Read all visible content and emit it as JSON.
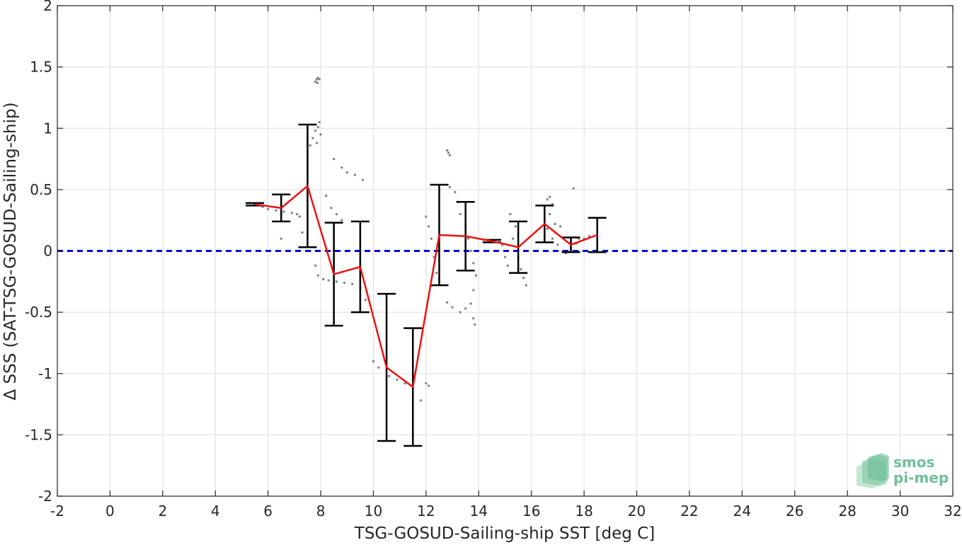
{
  "chart_data": {
    "type": "line",
    "xlabel": "TSG-GOSUD-Sailing-ship SST [deg C]",
    "ylabel": "Δ SSS (SAT-TSG-GOSUD-Sailing-ship)",
    "xlim": [
      -2,
      32
    ],
    "ylim": [
      -2,
      2
    ],
    "xticks": [
      -2,
      0,
      2,
      4,
      6,
      8,
      10,
      12,
      14,
      16,
      18,
      20,
      22,
      24,
      26,
      28,
      30,
      32
    ],
    "yticks": [
      -2,
      -1.5,
      -1,
      -0.5,
      0,
      0.5,
      1,
      1.5,
      2
    ],
    "xtick_labels": [
      "-2",
      "0",
      "2",
      "4",
      "6",
      "8",
      "10",
      "12",
      "14",
      "16",
      "18",
      "20",
      "22",
      "24",
      "26",
      "28",
      "30",
      "32"
    ],
    "ytick_labels": [
      "-2",
      "-1.5",
      "-1",
      "-0.5",
      "0",
      "0.5",
      "1",
      "1.5",
      "2"
    ],
    "grid": true,
    "reference_line": {
      "y": 0,
      "style": "dashed",
      "color": "#0000e0"
    },
    "series": [
      {
        "kind": "binned-mean-with-errorbars",
        "color": "#ee1111",
        "x": [
          5.5,
          6.5,
          7.5,
          8.5,
          9.5,
          10.5,
          11.5,
          12.5,
          13.5,
          14.5,
          15.5,
          16.5,
          17.5,
          18.5
        ],
        "y": [
          0.38,
          0.35,
          0.53,
          -0.19,
          -0.13,
          -0.95,
          -1.11,
          0.13,
          0.12,
          0.08,
          0.03,
          0.22,
          0.05,
          0.13
        ],
        "yerr": [
          0.01,
          0.11,
          0.5,
          0.42,
          0.37,
          0.6,
          0.48,
          0.41,
          0.28,
          0.01,
          0.21,
          0.15,
          0.06,
          0.14
        ]
      },
      {
        "kind": "scatter",
        "color": "#808080",
        "points": [
          [
            5.5,
            0.38
          ],
          [
            5.8,
            0.36
          ],
          [
            6.0,
            0.34
          ],
          [
            6.3,
            0.33
          ],
          [
            6.6,
            0.32
          ],
          [
            6.9,
            0.31
          ],
          [
            7.1,
            0.3
          ],
          [
            7.2,
            0.28
          ],
          [
            6.5,
            0.1
          ],
          [
            7.3,
            0.15
          ],
          [
            7.6,
            0.0
          ],
          [
            7.8,
            -0.12
          ],
          [
            7.9,
            -0.2
          ],
          [
            8.1,
            -0.23
          ],
          [
            8.3,
            -0.24
          ],
          [
            8.6,
            -0.25
          ],
          [
            8.9,
            -0.26
          ],
          [
            9.2,
            -0.27
          ],
          [
            9.5,
            -0.3
          ],
          [
            9.7,
            -0.4
          ],
          [
            7.6,
            0.86
          ],
          [
            7.7,
            0.92
          ],
          [
            7.8,
            0.98
          ],
          [
            7.9,
            1.01
          ],
          [
            7.95,
            1.05
          ],
          [
            8.0,
            0.95
          ],
          [
            7.85,
            0.88
          ],
          [
            7.8,
            1.38
          ],
          [
            7.85,
            1.4
          ],
          [
            7.9,
            1.41
          ],
          [
            7.95,
            1.4
          ],
          [
            7.88,
            1.37
          ],
          [
            8.5,
            0.75
          ],
          [
            8.8,
            0.68
          ],
          [
            9.0,
            0.64
          ],
          [
            9.3,
            0.62
          ],
          [
            9.6,
            0.58
          ],
          [
            8.2,
            0.45
          ],
          [
            8.4,
            0.35
          ],
          [
            8.6,
            0.3
          ],
          [
            8.8,
            0.25
          ],
          [
            10.0,
            -0.9
          ],
          [
            10.2,
            -0.95
          ],
          [
            10.6,
            -1.02
          ],
          [
            10.9,
            -1.05
          ],
          [
            11.2,
            -1.08
          ],
          [
            11.5,
            -1.12
          ],
          [
            11.8,
            -1.22
          ],
          [
            12.0,
            -1.08
          ],
          [
            12.1,
            -1.1
          ],
          [
            12.0,
            0.28
          ],
          [
            12.1,
            0.2
          ],
          [
            12.2,
            0.1
          ],
          [
            12.3,
            -0.05
          ],
          [
            12.4,
            -0.18
          ],
          [
            12.5,
            -0.22
          ],
          [
            12.8,
            0.82
          ],
          [
            12.85,
            0.8
          ],
          [
            12.9,
            0.78
          ],
          [
            12.9,
            0.52
          ],
          [
            13.1,
            0.48
          ],
          [
            13.2,
            0.4
          ],
          [
            13.3,
            0.3
          ],
          [
            13.5,
            0.2
          ],
          [
            13.6,
            0.1
          ],
          [
            13.7,
            0.0
          ],
          [
            13.8,
            -0.1
          ],
          [
            13.9,
            -0.2
          ],
          [
            13.8,
            -0.32
          ],
          [
            12.8,
            -0.42
          ],
          [
            13.0,
            -0.46
          ],
          [
            13.3,
            -0.5
          ],
          [
            13.5,
            -0.47
          ],
          [
            13.7,
            -0.43
          ],
          [
            13.8,
            -0.55
          ],
          [
            13.85,
            -0.6
          ],
          [
            15.2,
            0.3
          ],
          [
            15.4,
            0.2
          ],
          [
            15.3,
            0.1
          ],
          [
            15.5,
            -0.05
          ],
          [
            15.6,
            -0.15
          ],
          [
            15.7,
            -0.22
          ],
          [
            15.8,
            -0.28
          ],
          [
            14.9,
            0.05
          ],
          [
            15.0,
            -0.05
          ],
          [
            15.1,
            -0.12
          ],
          [
            16.6,
            0.42
          ],
          [
            16.7,
            0.44
          ],
          [
            16.8,
            0.38
          ],
          [
            16.7,
            0.3
          ],
          [
            16.9,
            0.22
          ],
          [
            16.6,
            0.18
          ],
          [
            16.8,
            0.1
          ],
          [
            17.0,
            0.05
          ],
          [
            17.2,
            0.0
          ],
          [
            17.5,
            0.02
          ],
          [
            17.7,
            0.06
          ],
          [
            17.8,
            0.1
          ],
          [
            18.0,
            0.1
          ],
          [
            18.2,
            0.12
          ],
          [
            17.3,
            -0.02
          ],
          [
            16.9,
            0.15
          ],
          [
            17.1,
            0.2
          ],
          [
            17.6,
            0.51
          ]
        ]
      }
    ]
  },
  "logo": {
    "line1": "smos",
    "line2": "pi-mep"
  }
}
